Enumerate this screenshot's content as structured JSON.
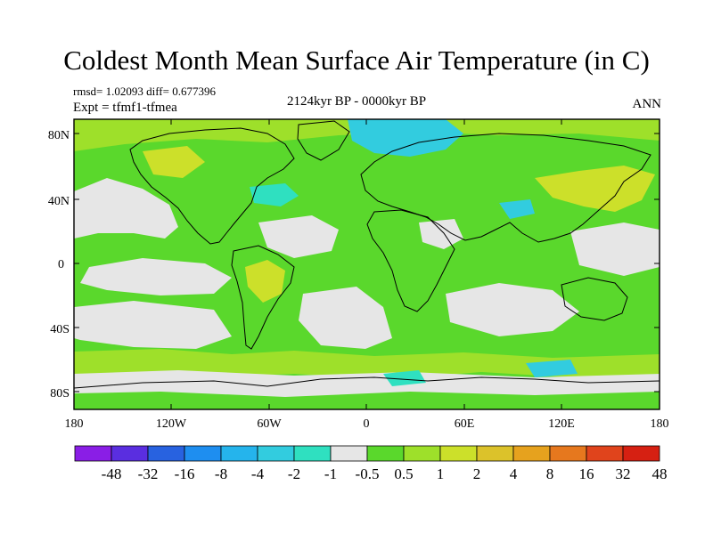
{
  "title": "Coldest Month Mean Surface Air Temperature (in C)",
  "stats": "rmsd= 1.02093 diff= 0.677396",
  "experiment": "Expt = tfmf1-tfmea",
  "period": "2124kyr BP - 0000kyr BP",
  "season": "ANN",
  "lat_ticks": [
    "80N",
    "40N",
    "0",
    "40S",
    "80S"
  ],
  "lon_ticks": [
    "180",
    "120W",
    "60W",
    "0",
    "60E",
    "120E",
    "180"
  ],
  "colorbar": {
    "labels": [
      "-48",
      "-32",
      "-16",
      "-8",
      "-4",
      "-2",
      "-1",
      "-0.5",
      "0.5",
      "1",
      "2",
      "4",
      "8",
      "16",
      "32",
      "48"
    ],
    "colors": [
      "#8a1ee6",
      "#5a2ee0",
      "#2862e0",
      "#1e8ef0",
      "#25b4ec",
      "#32ccdf",
      "#2fe0c0",
      "#e6e6e6",
      "#5ad82c",
      "#9ee02a",
      "#cce02a",
      "#dcc22a",
      "#e6a21e",
      "#e6781e",
      "#e0441c",
      "#d62012"
    ]
  },
  "field_colors": {
    "ocean_neutral": "#e6e6e6",
    "warm_1": "#5ad82c",
    "warm_2": "#9ee02a",
    "warm_4": "#cce02a",
    "cool_2": "#32ccdf",
    "cool_1": "#2fe0c0"
  }
}
